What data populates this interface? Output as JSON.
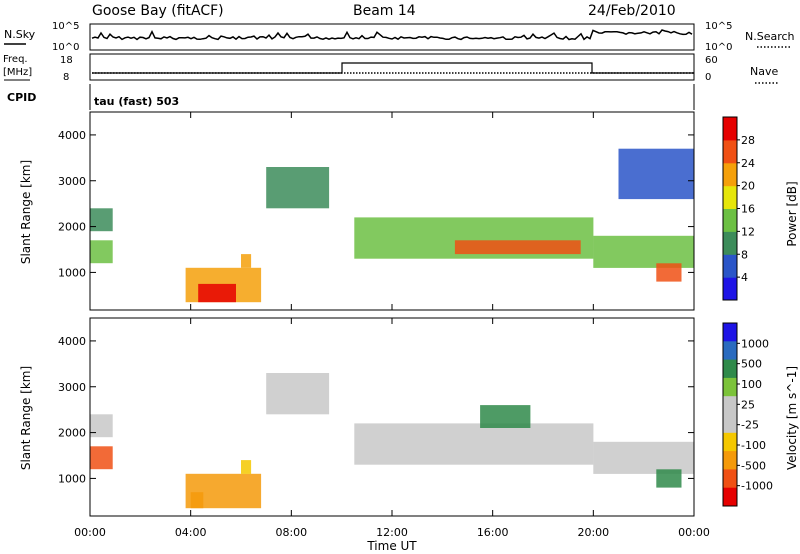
{
  "header": {
    "station": "Goose Bay (fitACF)",
    "beam": "Beam 14",
    "date": "24/Feb/2010"
  },
  "panels": {
    "noise": {
      "left_label": "N.Sky",
      "right_label": "N.Search",
      "left_ticks": [
        "10^5",
        "10^0"
      ],
      "right_ticks": [
        "10^5",
        "10^0"
      ]
    },
    "freq": {
      "left_label_1": "Freq.",
      "left_label_2": "[MHz]",
      "left_ticks": [
        "18",
        "8"
      ],
      "right_label": "Nave",
      "right_ticks": [
        "60",
        "0"
      ]
    },
    "cpid": {
      "label": "CPID",
      "value": "tau (fast) 503"
    }
  },
  "colors": {
    "power_scale": [
      "#1e14e6",
      "#2a55c8",
      "#3c8c5a",
      "#6cc043",
      "#e6e60a",
      "#f5a00a",
      "#f05014",
      "#e60000"
    ],
    "velocity_scale": [
      "#1e14e6",
      "#2a6bbf",
      "#2f8a4a",
      "#7cc33a",
      "#c8c8c8",
      "#c8c8c8",
      "#f5c800",
      "#f59a0a",
      "#f05014",
      "#e60000"
    ]
  },
  "chart_data": [
    {
      "type": "heatmap",
      "name": "power",
      "ylabel": "Slant Range [km]",
      "yticks": [
        "1000",
        "2000",
        "3000",
        "4000"
      ],
      "ylim": [
        180,
        4500
      ],
      "xlim_hours": [
        0,
        24
      ],
      "colorbar_label": "Power [dB]",
      "colorbar_ticks": [
        "4",
        "8",
        "12",
        "16",
        "20",
        "24",
        "28"
      ],
      "colorbar_range": [
        0,
        32
      ],
      "regions": [
        {
          "t": [
            0.0,
            0.9
          ],
          "r": [
            1200,
            1700
          ],
          "v": 12
        },
        {
          "t": [
            0.0,
            0.9
          ],
          "r": [
            1900,
            2400
          ],
          "v": 8
        },
        {
          "t": [
            3.8,
            6.8
          ],
          "r": [
            350,
            1100
          ],
          "v": 20
        },
        {
          "t": [
            4.3,
            5.8
          ],
          "r": [
            350,
            750
          ],
          "v": 28
        },
        {
          "t": [
            6.0,
            6.4
          ],
          "r": [
            1100,
            1400
          ],
          "v": 20
        },
        {
          "t": [
            7.0,
            9.5
          ],
          "r": [
            2400,
            3300
          ],
          "v": 8
        },
        {
          "t": [
            10.5,
            20.0
          ],
          "r": [
            1300,
            2200
          ],
          "v": 12
        },
        {
          "t": [
            14.5,
            19.5
          ],
          "r": [
            1400,
            1700
          ],
          "v": 24
        },
        {
          "t": [
            20.0,
            24.0
          ],
          "r": [
            1100,
            1800
          ],
          "v": 12
        },
        {
          "t": [
            22.5,
            23.5
          ],
          "r": [
            800,
            1200
          ],
          "v": 24
        },
        {
          "t": [
            21.0,
            24.0
          ],
          "r": [
            2600,
            3700
          ],
          "v": 6
        }
      ]
    },
    {
      "type": "heatmap",
      "name": "velocity",
      "ylabel": "Slant Range [km]",
      "yticks": [
        "1000",
        "2000",
        "3000",
        "4000"
      ],
      "ylim": [
        180,
        4500
      ],
      "xlabel": "Time UT",
      "xticks": [
        "00:00",
        "04:00",
        "08:00",
        "12:00",
        "16:00",
        "20:00",
        "00:00"
      ],
      "xlim_hours": [
        0,
        24
      ],
      "colorbar_label": "Velocity [m s^-1]",
      "colorbar_ticks": [
        "1000",
        "500",
        "100",
        "25",
        "-25",
        "-100",
        "-500",
        "-1000"
      ],
      "regions": [
        {
          "t": [
            0.0,
            0.9
          ],
          "r": [
            1200,
            1700
          ],
          "v": -1000
        },
        {
          "t": [
            0.0,
            0.9
          ],
          "r": [
            1900,
            2400
          ],
          "v": 0
        },
        {
          "t": [
            3.8,
            6.8
          ],
          "r": [
            350,
            1100
          ],
          "v": -150
        },
        {
          "t": [
            4.0,
            4.5
          ],
          "r": [
            350,
            700
          ],
          "v": -500
        },
        {
          "t": [
            6.0,
            6.4
          ],
          "r": [
            1100,
            1400
          ],
          "v": -100
        },
        {
          "t": [
            7.0,
            9.5
          ],
          "r": [
            2400,
            3300
          ],
          "v": 0
        },
        {
          "t": [
            10.5,
            20.0
          ],
          "r": [
            1300,
            2200
          ],
          "v": 0
        },
        {
          "t": [
            15.5,
            17.5
          ],
          "r": [
            2100,
            2600
          ],
          "v": 100
        },
        {
          "t": [
            20.0,
            24.0
          ],
          "r": [
            1100,
            1800
          ],
          "v": 0
        },
        {
          "t": [
            22.5,
            23.5
          ],
          "r": [
            800,
            1200
          ],
          "v": 200
        }
      ]
    }
  ]
}
